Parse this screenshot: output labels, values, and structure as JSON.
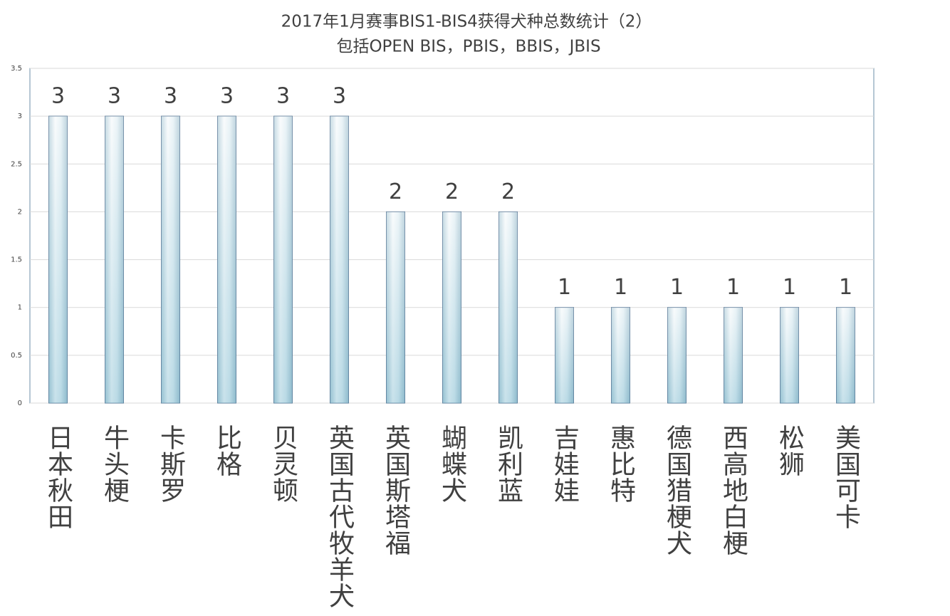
{
  "chart_data": {
    "type": "bar",
    "title": "2017年1月赛事BIS1-BIS4获得犬种总数统计（2）",
    "subtitle": "包括OPEN BIS，PBIS，BBIS，JBIS",
    "categories": [
      "日本秋田",
      "牛头梗",
      "卡斯罗",
      "比格",
      "贝灵顿",
      "英国古代牧羊犬",
      "英国斯塔福",
      "蝴蝶犬",
      "凯利蓝",
      "吉娃娃",
      "惠比特",
      "德国猎梗犬",
      "西高地白梗",
      "松狮",
      "美国可卡"
    ],
    "values": [
      3,
      3,
      3,
      3,
      3,
      3,
      2,
      2,
      2,
      1,
      1,
      1,
      1,
      1,
      1
    ],
    "ylim": [
      0,
      3.5
    ],
    "yticks": [
      0,
      0.5,
      1,
      1.5,
      2,
      2.5,
      3,
      3.5
    ],
    "grid": true
  }
}
